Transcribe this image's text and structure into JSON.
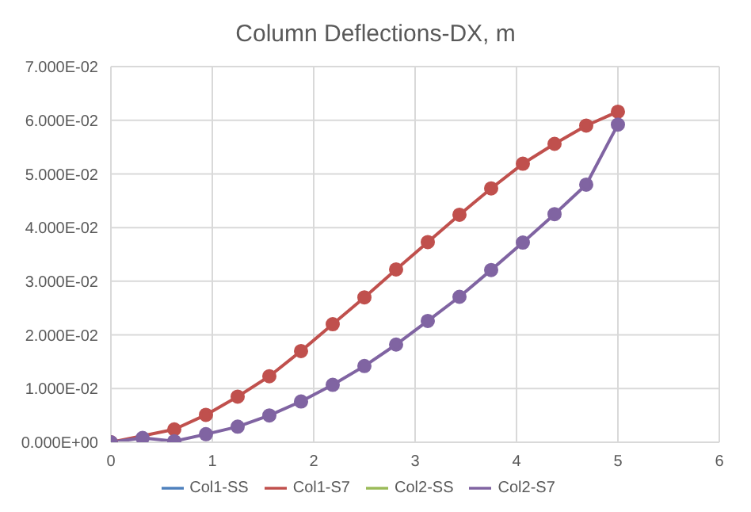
{
  "chart_data": {
    "type": "line",
    "title": "Column Deflections-DX, m",
    "x": [
      0,
      0.3125,
      0.625,
      0.9375,
      1.25,
      1.5625,
      1.875,
      2.1875,
      2.5,
      2.8125,
      3.125,
      3.4375,
      3.75,
      4.0625,
      4.375,
      4.6875,
      5
    ],
    "series": [
      {
        "name": "Col1-SS",
        "color": "#4f81bd",
        "values": [
          null,
          null,
          null,
          null,
          null,
          null,
          null,
          null,
          null,
          null,
          null,
          null,
          null,
          null,
          null,
          null,
          null
        ]
      },
      {
        "name": "Col1-S7",
        "color": "#c0504d",
        "values": [
          0,
          null,
          0.0024,
          0.0051,
          0.0085,
          0.0123,
          0.017,
          0.022,
          0.027,
          0.0322,
          0.0373,
          0.0424,
          0.0473,
          0.0519,
          0.0556,
          0.059,
          0.0616
        ]
      },
      {
        "name": "Col2-SS",
        "color": "#9bbb59",
        "values": [
          null,
          null,
          null,
          null,
          null,
          null,
          null,
          null,
          null,
          null,
          null,
          null,
          null,
          null,
          null,
          null,
          null
        ]
      },
      {
        "name": "Col2-S7",
        "color": "#8064a2",
        "values": [
          0,
          0.0008,
          0.0002,
          0.0015,
          0.0029,
          0.005,
          0.0076,
          0.0107,
          0.0142,
          0.0182,
          0.0226,
          0.0271,
          0.0321,
          0.0372,
          0.0425,
          0.048,
          0.0592
        ]
      }
    ],
    "xlim": [
      0,
      6
    ],
    "xticks": [
      0,
      1,
      2,
      3,
      4,
      5,
      6
    ],
    "ylim": [
      0,
      0.07
    ],
    "yticks": [
      {
        "value": 0,
        "label": "0.000E+00"
      },
      {
        "value": 0.01,
        "label": "1.000E-02"
      },
      {
        "value": 0.02,
        "label": "2.000E-02"
      },
      {
        "value": 0.03,
        "label": "3.000E-02"
      },
      {
        "value": 0.04,
        "label": "4.000E-02"
      },
      {
        "value": 0.05,
        "label": "5.000E-02"
      },
      {
        "value": 0.06,
        "label": "6.000E-02"
      },
      {
        "value": 0.07,
        "label": "7.000E-02"
      }
    ],
    "grid": true,
    "legend": "bottom",
    "marker": "circle",
    "line_style": "solid"
  }
}
